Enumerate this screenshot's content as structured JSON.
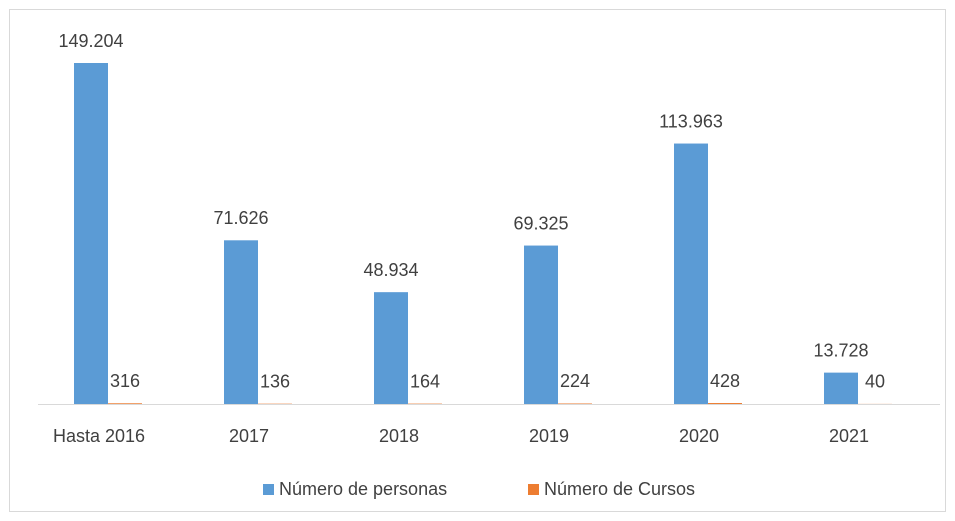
{
  "chart_data": {
    "type": "bar",
    "categories": [
      "Hasta 2016",
      "2017",
      "2018",
      "2019",
      "2020",
      "2021"
    ],
    "series": [
      {
        "name": "Número de personas",
        "color": "#5b9bd5",
        "values": [
          149204,
          71626,
          48934,
          69325,
          113963,
          13728
        ],
        "value_labels": [
          "149.204",
          "71.626",
          "48.934",
          "69.325",
          "113.963",
          "13.728"
        ]
      },
      {
        "name": "Número de Cursos",
        "color": "#ed7d31",
        "values": [
          316,
          136,
          164,
          224,
          428,
          40
        ]
      }
    ],
    "legend": "bottom"
  }
}
